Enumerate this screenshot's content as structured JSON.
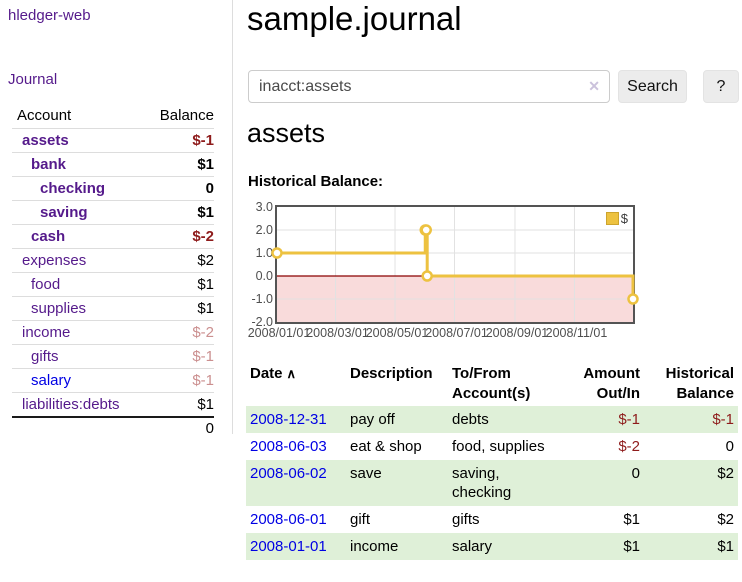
{
  "sidebar": {
    "brand": "hledger-web",
    "journal_link": "Journal",
    "accounts_table": {
      "headers": [
        "Account",
        "Balance"
      ],
      "rows": [
        {
          "name": "assets",
          "balance": "$-1",
          "indent": 0,
          "bold": true,
          "balance_class": "neg",
          "link": "purple"
        },
        {
          "name": "bank",
          "balance": "$1",
          "indent": 1,
          "bold": true,
          "balance_class": "",
          "link": "purple"
        },
        {
          "name": "checking",
          "balance": "0",
          "indent": 2,
          "bold": true,
          "balance_class": "",
          "link": "purple"
        },
        {
          "name": "saving",
          "balance": "$1",
          "indent": 2,
          "bold": true,
          "balance_class": "",
          "link": "purple"
        },
        {
          "name": "cash",
          "balance": "$-2",
          "indent": 1,
          "bold": true,
          "balance_class": "neg",
          "link": "purple"
        },
        {
          "name": "expenses",
          "balance": "$2",
          "indent": 0,
          "bold": false,
          "balance_class": "",
          "link": "purple"
        },
        {
          "name": "food",
          "balance": "$1",
          "indent": 1,
          "bold": false,
          "balance_class": "",
          "link": "purple"
        },
        {
          "name": "supplies",
          "balance": "$1",
          "indent": 1,
          "bold": false,
          "balance_class": "",
          "link": "purple"
        },
        {
          "name": "income",
          "balance": "$-2",
          "indent": 0,
          "bold": false,
          "balance_class": "neg-light",
          "link": "purple"
        },
        {
          "name": "gifts",
          "balance": "$-1",
          "indent": 1,
          "bold": false,
          "balance_class": "neg-light",
          "link": "purple"
        },
        {
          "name": "salary",
          "balance": "$-1",
          "indent": 1,
          "bold": false,
          "balance_class": "neg-light",
          "link": "blue"
        },
        {
          "name": "liabilities:debts",
          "balance": "$1",
          "indent": 0,
          "bold": false,
          "balance_class": "",
          "link": "purple"
        }
      ],
      "total": "0"
    }
  },
  "header": {
    "title": "sample.journal"
  },
  "search": {
    "value": "inacct:assets",
    "clear_icon": "✕",
    "button_label": "Search",
    "help_label": "?"
  },
  "account_page": {
    "heading": "assets",
    "chart_label": "Historical Balance:"
  },
  "chart_data": {
    "type": "line",
    "step": true,
    "series": [
      {
        "name": "$",
        "color": "#edc240",
        "points": [
          [
            "2008-01-01",
            1
          ],
          [
            "2008-06-01",
            2
          ],
          [
            "2008-06-02",
            2
          ],
          [
            "2008-06-03",
            0
          ],
          [
            "2008-12-31",
            -1
          ]
        ]
      }
    ],
    "xdomain": [
      "2008-01-01",
      "2008-12-31"
    ],
    "ylim": [
      -2,
      3
    ],
    "ytick_values": [
      3,
      2,
      1,
      0,
      -1,
      -2
    ],
    "ytick_labels": [
      "3.0",
      "2.0",
      "1.0",
      "0.0",
      "-1.0",
      "-2.0"
    ],
    "xtick_dates": [
      "2008-01-01",
      "2008-03-01",
      "2008-05-01",
      "2008-07-01",
      "2008-09-01",
      "2008-11-01"
    ],
    "xtick_labels": [
      "2008/01/01",
      "2008/03/01",
      "2008/05/01",
      "2008/07/01",
      "2008/09/01",
      "2008/11/01"
    ],
    "legend": {
      "label": "$",
      "position": "top-right"
    },
    "grid": true,
    "grid_color": "#e2e2e2",
    "negative_fill": "#f9dbdb",
    "zero_line_color": "#8b0000",
    "axis_text_color": "#4f4f4f",
    "marker": {
      "fill": "#ffffff",
      "radius": 4.5
    }
  },
  "register": {
    "columns": [
      {
        "label": "Date",
        "sort_icon": "∧",
        "align": "left"
      },
      {
        "label": "Description",
        "align": "left"
      },
      {
        "label": "To/From Account(s)",
        "align": "left"
      },
      {
        "label": "Amount Out/In",
        "align": "right"
      },
      {
        "label": "Historical Balance",
        "align": "right"
      }
    ],
    "rows": [
      {
        "date": "2008-12-31",
        "description": "pay off",
        "accounts": "debts",
        "amount": "$-1",
        "amount_class": "neg",
        "balance": "$-1",
        "balance_class": "neg",
        "shaded": true
      },
      {
        "date": "2008-06-03",
        "description": "eat & shop",
        "accounts": "food, supplies",
        "amount": "$-2",
        "amount_class": "neg",
        "balance": "0",
        "balance_class": "",
        "shaded": false
      },
      {
        "date": "2008-06-02",
        "description": "save",
        "accounts": "saving, checking",
        "amount": "0",
        "amount_class": "",
        "balance": "$2",
        "balance_class": "",
        "shaded": true
      },
      {
        "date": "2008-06-01",
        "description": "gift",
        "accounts": "gifts",
        "amount": "$1",
        "amount_class": "",
        "balance": "$2",
        "balance_class": "",
        "shaded": false
      },
      {
        "date": "2008-01-01",
        "description": "income",
        "accounts": "salary",
        "amount": "$1",
        "amount_class": "",
        "balance": "$1",
        "balance_class": "",
        "shaded": true
      }
    ]
  }
}
